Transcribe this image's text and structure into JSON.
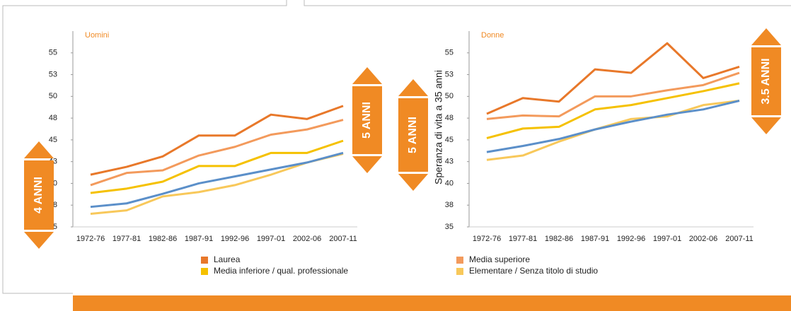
{
  "chart_data": [
    {
      "type": "line",
      "title": "Uomini",
      "categories": [
        "1972-76",
        "1977-81",
        "1982-86",
        "1987-91",
        "1992-96",
        "1997-01",
        "2002-06",
        "2007-11"
      ],
      "ylim": [
        35,
        57.5
      ],
      "yticks": [
        35,
        {
          "value": 37.5,
          "label": "38"
        },
        40,
        {
          "value": 42.5,
          "label": "43"
        },
        45,
        {
          "value": 47.5,
          "label": "48"
        },
        50,
        {
          "value": 52.5,
          "label": "53"
        },
        55
      ],
      "series": [
        {
          "name": "Laurea",
          "color": "#e8782a",
          "values": [
            41.0,
            41.9,
            43.1,
            45.5,
            45.5,
            47.9,
            47.4,
            48.9
          ]
        },
        {
          "name": "Media superiore",
          "color": "#f39a5c",
          "values": [
            39.8,
            41.2,
            41.5,
            43.2,
            44.2,
            45.6,
            46.2,
            47.3
          ]
        },
        {
          "name": "Media inferiore / qual. professionale",
          "color": "#f5c100",
          "values": [
            38.9,
            39.4,
            40.2,
            42.0,
            42.0,
            43.5,
            43.5,
            44.9
          ]
        },
        {
          "name": "Elementare / Senza titolo di studio",
          "color": "#f8c85a",
          "values": [
            36.5,
            36.9,
            38.5,
            39.0,
            39.8,
            41.0,
            42.4,
            43.4
          ]
        },
        {
          "color": "#5b8fc9",
          "values": [
            37.3,
            37.7,
            38.8,
            40.0,
            40.8,
            41.6,
            42.4,
            43.5
          ]
        }
      ],
      "annotations": [
        "4 ANNI",
        "5 ANNI"
      ]
    },
    {
      "type": "line",
      "title": "Donne",
      "ylabel": "Speranza di vita a 35 anni",
      "categories": [
        "1972-76",
        "1977-81",
        "1982-86",
        "1987-91",
        "1992-96",
        "1997-01",
        "2002-06",
        "2007-11"
      ],
      "ylim": [
        35,
        57.5
      ],
      "yticks": [
        35,
        {
          "value": 37.5,
          "label": "38"
        },
        40,
        {
          "value": 42.5,
          "label": "43"
        },
        45,
        {
          "value": 47.5,
          "label": "48"
        },
        50,
        {
          "value": 52.5,
          "label": "53"
        },
        55
      ],
      "series": [
        {
          "color": "#e8782a",
          "values": [
            48.0,
            49.8,
            49.4,
            53.1,
            52.7,
            56.1,
            52.1,
            53.4
          ]
        },
        {
          "color": "#f39a5c",
          "values": [
            47.4,
            47.8,
            47.7,
            50.0,
            50.0,
            50.7,
            51.3,
            52.7
          ]
        },
        {
          "color": "#f5c100",
          "values": [
            45.2,
            46.3,
            46.5,
            48.5,
            49.0,
            49.8,
            50.6,
            51.5
          ]
        },
        {
          "color": "#f8c85a",
          "values": [
            42.7,
            43.2,
            44.8,
            46.2,
            47.4,
            47.7,
            49.0,
            49.5
          ]
        },
        {
          "color": "#5b8fc9",
          "values": [
            43.6,
            44.3,
            45.1,
            46.2,
            47.1,
            47.9,
            48.5,
            49.5
          ]
        }
      ],
      "annotations": [
        "5 ANNI",
        "3.5 ANNI"
      ]
    }
  ]
}
